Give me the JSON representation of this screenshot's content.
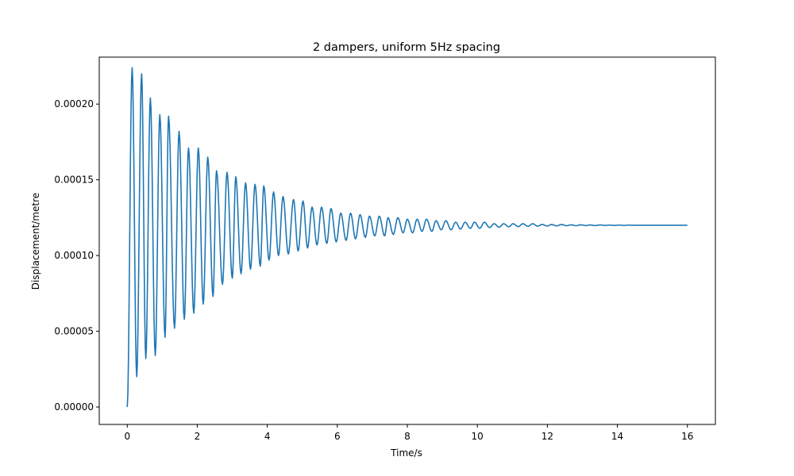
{
  "chart_data": {
    "type": "line",
    "title": "2 dampers, uniform 5Hz spacing",
    "xlabel": "Time/s",
    "ylabel": "Displacement/metre",
    "xlim": [
      -0.8,
      16.8
    ],
    "ylim": [
      -1.15e-05,
      0.000231
    ],
    "xticks": [
      0,
      2,
      4,
      6,
      8,
      10,
      12,
      14,
      16
    ],
    "xtick_labels": [
      "0",
      "2",
      "4",
      "6",
      "8",
      "10",
      "12",
      "14",
      "16"
    ],
    "yticks": [
      0,
      5e-05,
      0.0001,
      0.00015,
      0.0002
    ],
    "ytick_labels": [
      "0.00000",
      "0.00005",
      "0.00010",
      "0.00015",
      "0.00020"
    ],
    "grid": false,
    "legend": "none",
    "series": [
      {
        "color": "#1f77b4",
        "x_range": [
          0,
          16
        ],
        "equilibrium": 0.00012,
        "peaks": [
          [
            0.14,
            0.000224
          ],
          [
            0.41,
            0.00022
          ],
          [
            0.66,
            0.000204
          ],
          [
            0.93,
            0.000193
          ],
          [
            1.18,
            0.000192
          ],
          [
            1.48,
            0.000182
          ],
          [
            1.75,
            0.000171
          ],
          [
            2.03,
            0.000171
          ],
          [
            2.3,
            0.000165
          ],
          [
            2.55,
            0.000156
          ],
          [
            2.85,
            0.000155
          ],
          [
            3.1,
            0.000152
          ],
          [
            3.38,
            0.000148
          ],
          [
            3.65,
            0.000147
          ],
          [
            3.9,
            0.000146
          ],
          [
            4.18,
            0.000142
          ],
          [
            4.45,
            0.000139
          ],
          [
            4.75,
            0.000137
          ],
          [
            5.02,
            0.000136
          ],
          [
            5.28,
            0.000132
          ],
          [
            5.55,
            0.000132
          ],
          [
            5.82,
            0.000131
          ],
          [
            6.1,
            0.000128
          ],
          [
            6.38,
            0.000128
          ],
          [
            6.65,
            0.000127
          ],
          [
            6.92,
            0.000126
          ],
          [
            7.2,
            0.000126
          ],
          [
            7.45,
            0.000125
          ],
          [
            7.73,
            0.000125
          ],
          [
            8.0,
            0.000124
          ],
          [
            8.28,
            0.000124
          ],
          [
            8.55,
            0.000124
          ],
          [
            8.82,
            0.000123
          ],
          [
            9.1,
            0.000123
          ],
          [
            9.38,
            0.000122
          ],
          [
            9.65,
            0.000122
          ],
          [
            9.92,
            0.000122
          ],
          [
            10.2,
            0.000122
          ],
          [
            10.48,
            0.000121
          ],
          [
            10.75,
            0.000121
          ],
          [
            11.02,
            0.000121
          ],
          [
            11.3,
            0.000121
          ],
          [
            11.58,
            0.000121
          ],
          [
            11.85,
            0.0001205
          ],
          [
            12.12,
            0.0001205
          ],
          [
            12.4,
            0.0001205
          ],
          [
            12.68,
            0.0001203
          ],
          [
            12.95,
            0.0001203
          ],
          [
            13.22,
            0.0001202
          ],
          [
            13.5,
            0.0001202
          ],
          [
            13.78,
            0.0001201
          ],
          [
            14.05,
            0.0001201
          ],
          [
            14.33,
            0.0001201
          ],
          [
            14.6,
            0.00012
          ]
        ],
        "troughs": [
          [
            0.27,
            2e-05
          ],
          [
            0.53,
            3.2e-05
          ],
          [
            0.8,
            3.4e-05
          ],
          [
            1.08,
            4.6e-05
          ],
          [
            1.35,
            5.2e-05
          ],
          [
            1.63,
            5.8e-05
          ],
          [
            1.9,
            6.2e-05
          ],
          [
            2.17,
            6.8e-05
          ],
          [
            2.45,
            7.3e-05
          ],
          [
            2.72,
            8.1e-05
          ],
          [
            3.0,
            8.5e-05
          ],
          [
            3.25,
            8.8e-05
          ],
          [
            3.52,
            9.1e-05
          ],
          [
            3.8,
            9.3e-05
          ],
          [
            4.05,
            9.7e-05
          ],
          [
            4.32,
            0.0001
          ],
          [
            4.6,
            0.000101
          ],
          [
            4.88,
            0.000103
          ],
          [
            5.15,
            0.000105
          ],
          [
            5.42,
            0.000107
          ],
          [
            5.7,
            0.000108
          ],
          [
            5.97,
            0.000109
          ],
          [
            6.25,
            0.00011
          ],
          [
            6.52,
            0.000111
          ],
          [
            6.8,
            0.000112
          ],
          [
            7.07,
            0.000113
          ],
          [
            7.35,
            0.000113
          ],
          [
            7.6,
            0.000114
          ],
          [
            7.88,
            0.000115
          ],
          [
            8.15,
            0.000115
          ],
          [
            8.42,
            0.000116
          ],
          [
            8.7,
            0.000116
          ],
          [
            8.97,
            0.000117
          ],
          [
            9.25,
            0.000117
          ],
          [
            9.52,
            0.0001175
          ],
          [
            9.8,
            0.000118
          ],
          [
            10.07,
            0.000118
          ],
          [
            10.35,
            0.0001185
          ],
          [
            10.62,
            0.0001187
          ],
          [
            10.9,
            0.000119
          ],
          [
            11.17,
            0.0001191
          ],
          [
            11.45,
            0.0001193
          ],
          [
            11.72,
            0.0001194
          ],
          [
            12.0,
            0.0001195
          ],
          [
            12.27,
            0.0001196
          ],
          [
            12.55,
            0.0001197
          ],
          [
            12.82,
            0.0001197
          ],
          [
            13.1,
            0.0001198
          ],
          [
            13.37,
            0.0001198
          ],
          [
            13.65,
            0.0001199
          ],
          [
            13.92,
            0.0001199
          ],
          [
            14.2,
            0.0001199
          ],
          [
            14.47,
            0.00012
          ]
        ]
      }
    ]
  }
}
